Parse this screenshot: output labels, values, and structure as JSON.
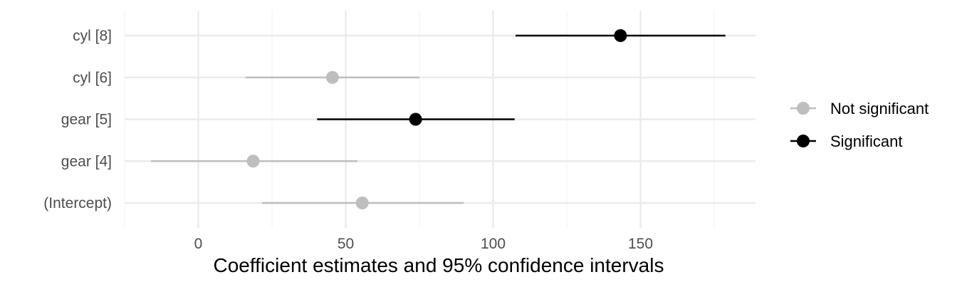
{
  "chart_data": {
    "type": "scatter",
    "subtype": "coefficient-plot",
    "xlabel": "Coefficient estimates and 95% confidence intervals",
    "ylabel": "",
    "xlim": [
      -25,
      189
    ],
    "xticks": [
      0,
      50,
      100,
      150
    ],
    "minor_xticks": [
      -25,
      25,
      75,
      125,
      175
    ],
    "grid": true,
    "legend_position": "right",
    "categories": [
      "cyl [8]",
      "cyl [6]",
      "gear [5]",
      "gear [4]",
      "(Intercept)"
    ],
    "estimates": [
      {
        "term": "cyl [8]",
        "estimate": 143.2,
        "conf_low": 107.6,
        "conf_high": 178.8,
        "group": "Significant"
      },
      {
        "term": "cyl [6]",
        "estimate": 45.5,
        "conf_low": 16.0,
        "conf_high": 75.0,
        "group": "Not significant"
      },
      {
        "term": "gear [5]",
        "estimate": 73.7,
        "conf_low": 40.3,
        "conf_high": 107.3,
        "group": "Significant"
      },
      {
        "term": "gear [4]",
        "estimate": 18.6,
        "conf_low": -16.1,
        "conf_high": 54.0,
        "group": "Not significant"
      },
      {
        "term": "(Intercept)",
        "estimate": 55.6,
        "conf_low": 21.6,
        "conf_high": 90.0,
        "group": "Not significant"
      }
    ],
    "series": [
      {
        "name": "Not significant",
        "color": "#bebebe"
      },
      {
        "name": "Significant",
        "color": "#000000"
      }
    ]
  }
}
